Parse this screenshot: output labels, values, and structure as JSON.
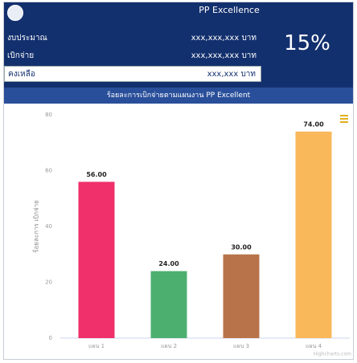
{
  "header": {
    "title": "PP Excellence",
    "percent": "15%",
    "rows": [
      {
        "label": "งบประมาณ",
        "value": "xxx,xxx,xxx บาท"
      },
      {
        "label": "เบิกจ่าย",
        "value": "xxx,xxx,xxx บาท"
      },
      {
        "label": "คงเหลือ",
        "value": "xxx,xxx บาท"
      }
    ]
  },
  "chart_data": {
    "type": "bar",
    "title": "ร้อยละการเบิกจ่ายตามแผนงาน PP Excellent",
    "y_label": "ร้อยละการ เบิกจ่าย",
    "categories": [
      "แผน 1",
      "แผน 2",
      "แผน 3",
      "แผน 4"
    ],
    "values": [
      56,
      24,
      30,
      74
    ],
    "value_labels": [
      "56.00",
      "24.00",
      "30.00",
      "74.00"
    ],
    "colors": [
      "#f0306a",
      "#4caf70",
      "#b8734a",
      "#f9b85a"
    ],
    "ylim": [
      0,
      80
    ],
    "yticks": [
      0,
      20,
      40,
      60,
      80
    ],
    "grid": false,
    "credit": "Highcharts.com"
  }
}
